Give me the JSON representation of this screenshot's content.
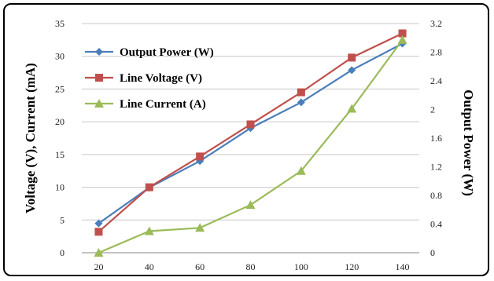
{
  "chart_data": {
    "type": "line",
    "x": [
      20,
      40,
      60,
      80,
      100,
      120,
      140
    ],
    "xlabel": "",
    "ylabel": "Voltage (V), Current (mA)",
    "ylabel_right": "Output Power (W)",
    "ylim": [
      0,
      35
    ],
    "ylim_right": [
      0,
      3.2
    ],
    "yticks": [
      "0",
      "5",
      "10",
      "15",
      "20",
      "25",
      "30",
      "35"
    ],
    "yticks_right": [
      "0",
      "0.4",
      "0.8",
      "1.2",
      "1.6",
      "2",
      "2.4",
      "2.8",
      "3.2"
    ],
    "grid": true,
    "legend_position": "top-left",
    "series": [
      {
        "name": "Output Power (W)",
        "axis": "right",
        "color": "#4a7ebb",
        "marker": "diamond",
        "values": [
          0.41,
          0.91,
          1.28,
          1.74,
          2.1,
          2.55,
          2.92
        ]
      },
      {
        "name": "Line Voltage (V)",
        "axis": "left",
        "color": "#c0504d",
        "marker": "square",
        "values": [
          3.2,
          10.0,
          14.7,
          19.6,
          24.5,
          29.8,
          33.5
        ]
      },
      {
        "name": "Line Current (A)",
        "axis": "left",
        "color": "#9bbb59",
        "marker": "triangle",
        "values": [
          0.0,
          3.3,
          3.8,
          7.3,
          12.5,
          22.0,
          32.5
        ]
      }
    ]
  }
}
